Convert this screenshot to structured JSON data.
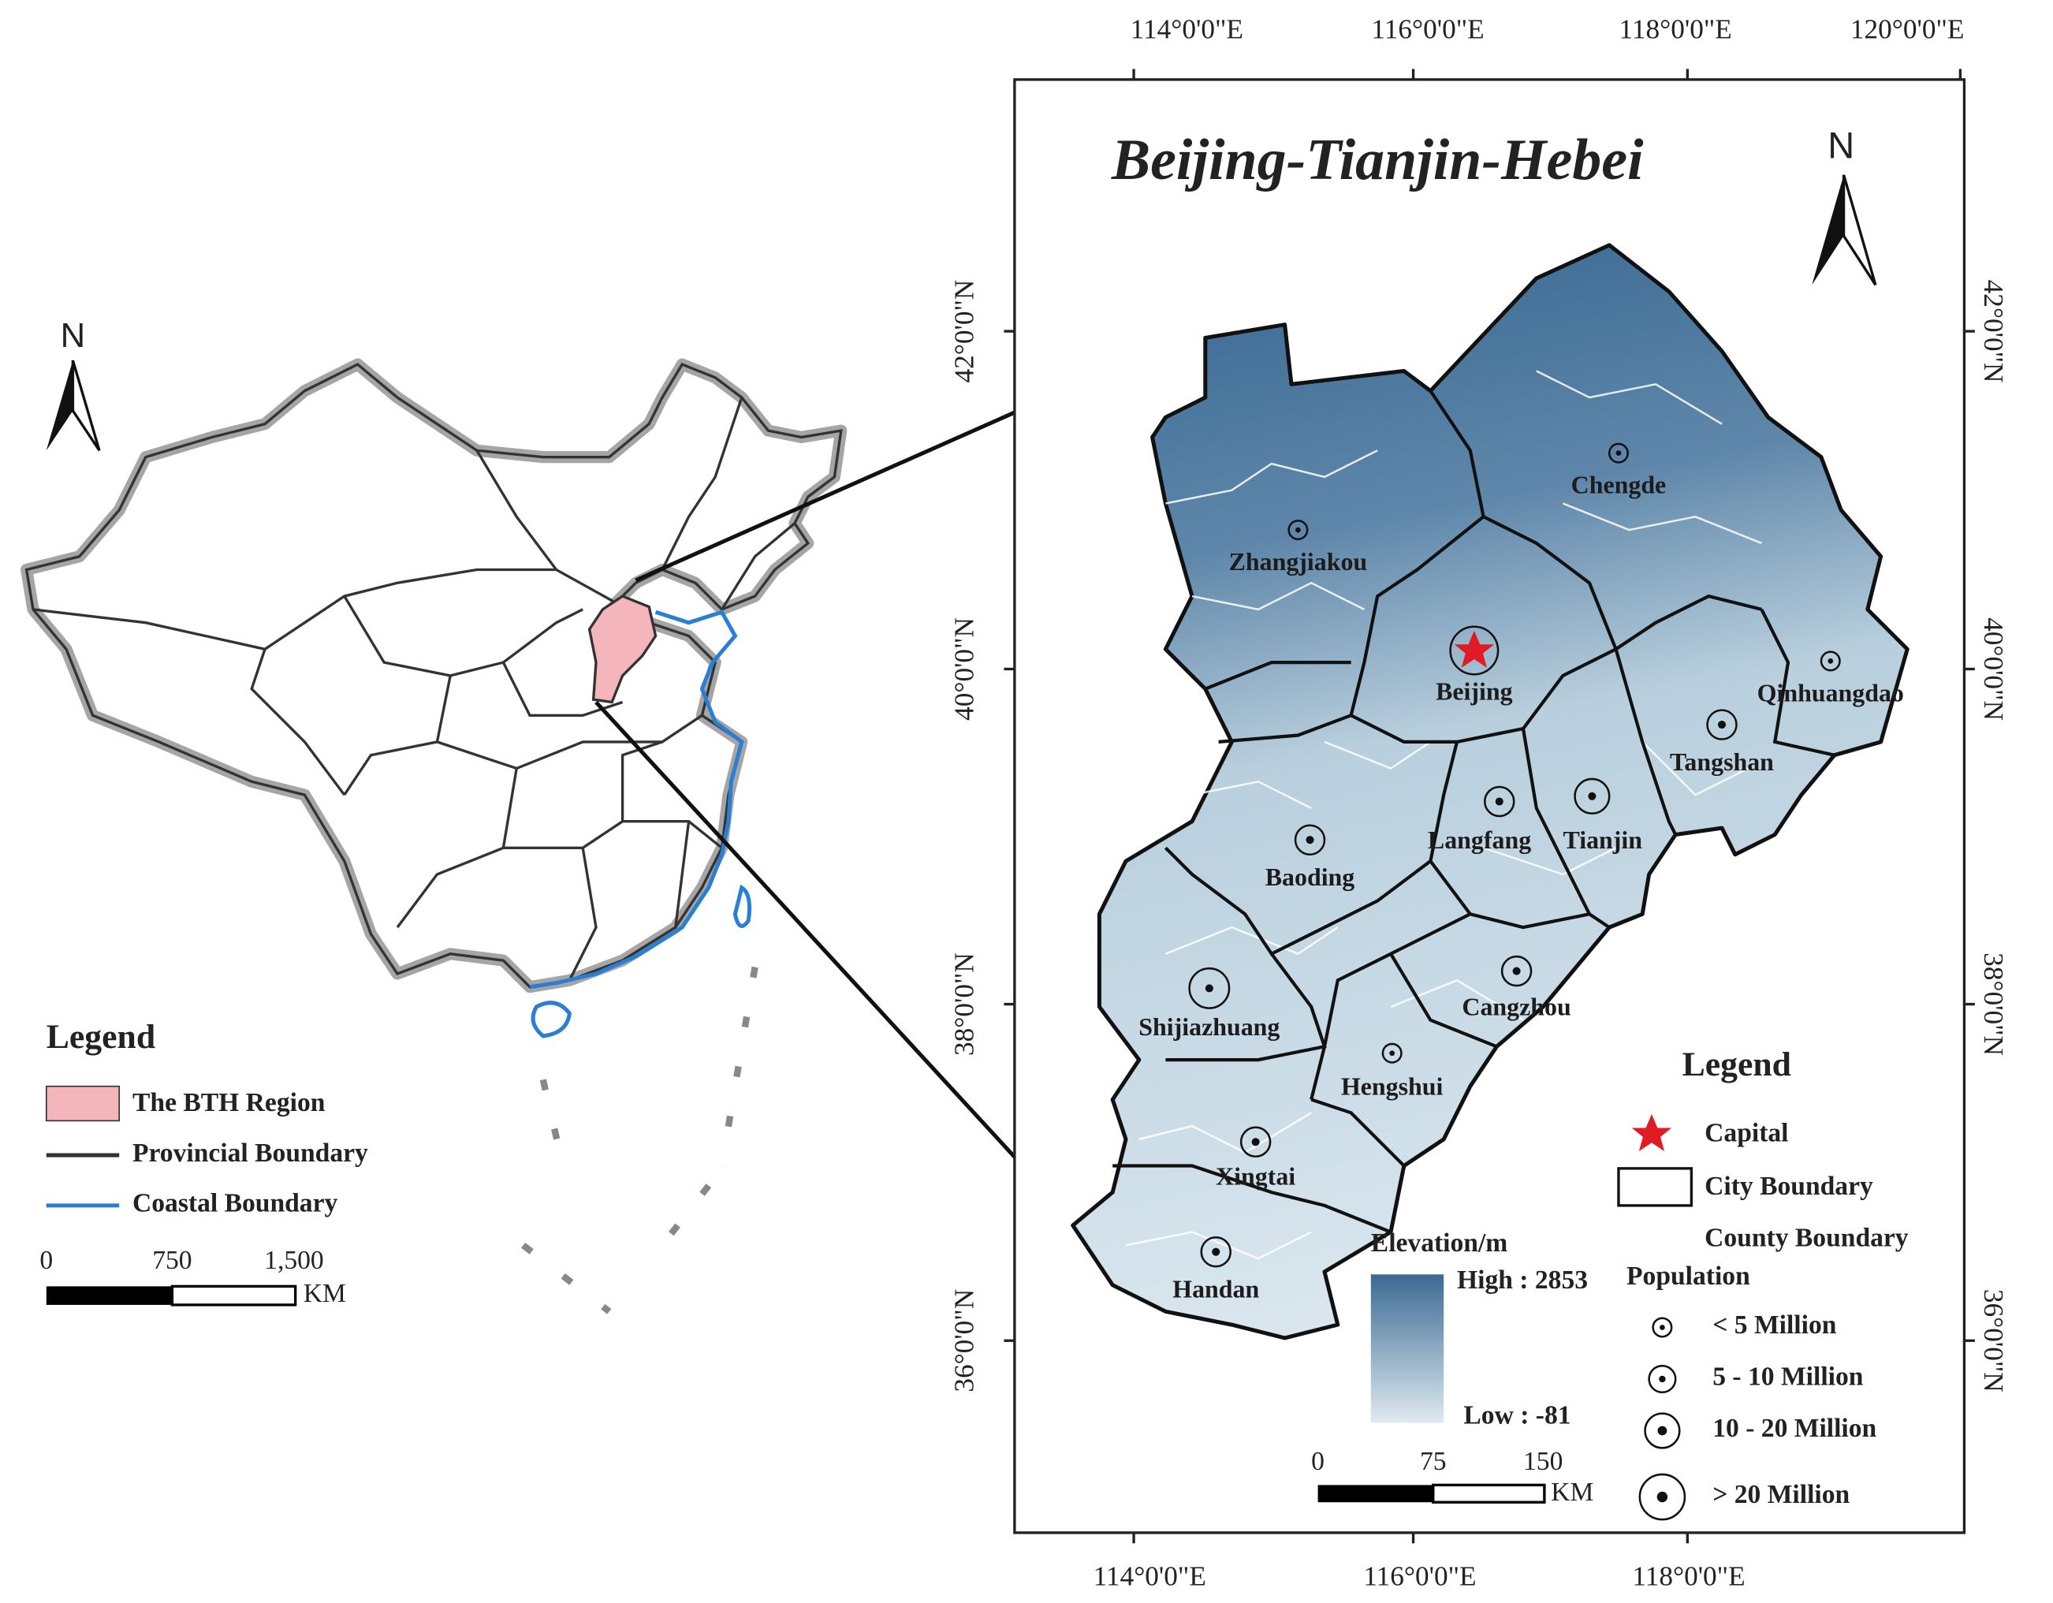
{
  "overview_map": {
    "north": "N",
    "legend": {
      "title": "Legend",
      "items": [
        "The BTH Region",
        "Provincial Boundary",
        "Coastal Boundary"
      ]
    },
    "scale_bar": {
      "ticks": [
        "0",
        "750",
        "1,500"
      ],
      "unit": "KM"
    }
  },
  "main_map": {
    "title": "Beijing-Tianjin-Hebei",
    "north": "N",
    "top_lon_labels": [
      "114°0'0\"E",
      "116°0'0\"E",
      "118°0'0\"E",
      "120°0'0\"E"
    ],
    "bottom_lon_labels": [
      "114°0'0\"E",
      "116°0'0\"E",
      "118°0'0\"E"
    ],
    "left_lat_labels": [
      "42°0'0\"N",
      "40°0'0\"N",
      "38°0'0\"N",
      "36°0'0\"N"
    ],
    "right_lat_labels": [
      "42°0'0\"N",
      "40°0'0\"N",
      "38°0'0\"N",
      "36°0'0\"N"
    ],
    "cities": [
      "Chengde",
      "Zhangjiakou",
      "Beijing",
      "Qinhuangdao",
      "Tangshan",
      "Langfang",
      "Tianjin",
      "Baoding",
      "Cangzhou",
      "Shijiazhuang",
      "Hengshui",
      "Xingtai",
      "Handan"
    ],
    "legend": {
      "title": "Legend",
      "items": [
        "Capital",
        "City Boundary",
        "County Boundary"
      ]
    },
    "population": {
      "title": "Population",
      "classes": [
        "< 5 Million",
        "5 - 10 Million",
        "10 - 20 Million",
        "> 20 Million"
      ]
    },
    "elevation": {
      "title": "Elevation/m",
      "high": "High : 2853",
      "low": "Low : -81"
    },
    "scale_bar": {
      "ticks": [
        "0",
        "75",
        "150"
      ],
      "unit": "KM"
    }
  }
}
